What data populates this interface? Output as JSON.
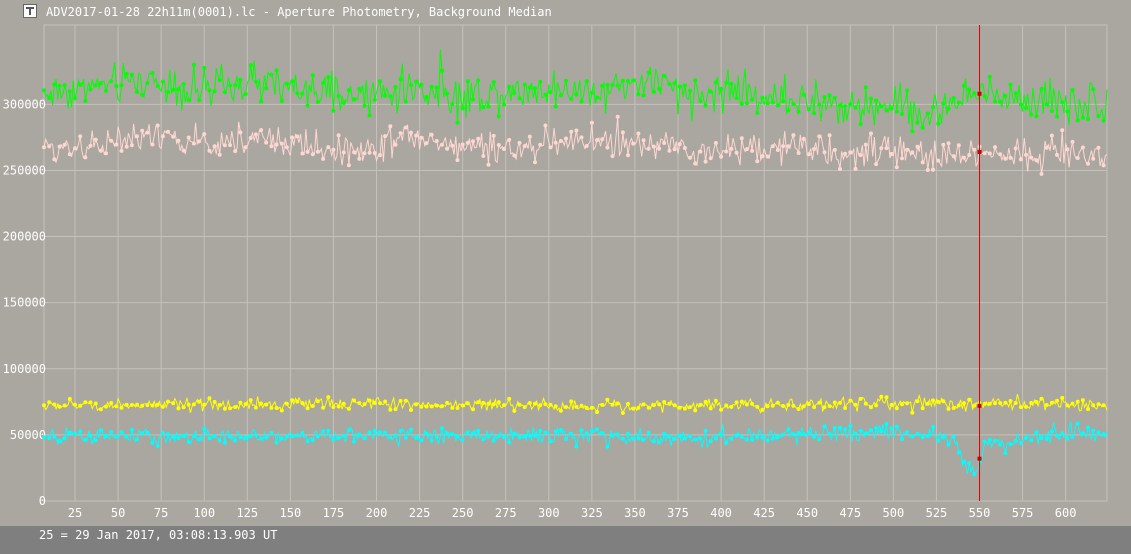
{
  "window": {
    "title": "ADV2017-01-28 22h11m(0001).lc - Aperture Photometry, Background Median"
  },
  "footer": {
    "status": "25 = 29 Jan 2017, 03:08:13.903 UT"
  },
  "chart_data": {
    "type": "line",
    "xlim": [
      7,
      624
    ],
    "ylim": [
      0,
      360000
    ],
    "x_ticks": [
      25,
      50,
      75,
      100,
      125,
      150,
      175,
      200,
      225,
      250,
      275,
      300,
      325,
      350,
      375,
      400,
      425,
      450,
      475,
      500,
      525,
      550,
      575,
      600
    ],
    "y_ticks": [
      0,
      50000,
      100000,
      150000,
      200000,
      250000,
      300000
    ],
    "grid": true,
    "cursor_x": 550,
    "colors": {
      "background": "#aaa6a0",
      "grid": "#c4c0ba",
      "axis_text": "#ffffff",
      "cursor": "#e00000",
      "marker": "#c80000"
    },
    "series": [
      {
        "color": "#00ff00",
        "points": [
          [
            7,
            308000
          ],
          [
            40,
            314000
          ],
          [
            70,
            318000
          ],
          [
            100,
            310000
          ],
          [
            130,
            316000
          ],
          [
            160,
            309000
          ],
          [
            190,
            305000
          ],
          [
            220,
            312000
          ],
          [
            250,
            306000
          ],
          [
            280,
            310000
          ],
          [
            300,
            313000
          ],
          [
            320,
            308000
          ],
          [
            340,
            314000
          ],
          [
            360,
            318000
          ],
          [
            380,
            304000
          ],
          [
            400,
            310000
          ],
          [
            430,
            306000
          ],
          [
            460,
            300000
          ],
          [
            480,
            296000
          ],
          [
            500,
            302000
          ],
          [
            520,
            290000
          ],
          [
            540,
            305000
          ],
          [
            560,
            307000
          ],
          [
            590,
            303000
          ],
          [
            624,
            300000
          ]
        ],
        "noise": 14000,
        "cursor_value": 308000
      },
      {
        "color": "#ffd7d2",
        "points": [
          [
            7,
            266000
          ],
          [
            40,
            271000
          ],
          [
            70,
            274000
          ],
          [
            100,
            270000
          ],
          [
            130,
            275000
          ],
          [
            160,
            268000
          ],
          [
            190,
            265000
          ],
          [
            220,
            276000
          ],
          [
            250,
            267000
          ],
          [
            280,
            266000
          ],
          [
            300,
            271000
          ],
          [
            330,
            272000
          ],
          [
            360,
            268000
          ],
          [
            390,
            263000
          ],
          [
            420,
            269000
          ],
          [
            450,
            266000
          ],
          [
            480,
            262000
          ],
          [
            500,
            265000
          ],
          [
            520,
            261000
          ],
          [
            540,
            262000
          ],
          [
            560,
            263000
          ],
          [
            590,
            264000
          ],
          [
            624,
            262000
          ]
        ],
        "noise": 11000,
        "cursor_value": 264000
      },
      {
        "color": "#ffff00",
        "points": [
          [
            7,
            72000
          ],
          [
            60,
            73000
          ],
          [
            120,
            72000
          ],
          [
            180,
            74000
          ],
          [
            240,
            73000
          ],
          [
            300,
            72000
          ],
          [
            360,
            72000
          ],
          [
            420,
            73000
          ],
          [
            480,
            74000
          ],
          [
            540,
            73000
          ],
          [
            580,
            74000
          ],
          [
            624,
            72000
          ]
        ],
        "noise": 4500,
        "cursor_value": 72000
      },
      {
        "color": "#00ffff",
        "points": [
          [
            7,
            48000
          ],
          [
            60,
            49000
          ],
          [
            120,
            48000
          ],
          [
            180,
            50000
          ],
          [
            240,
            49000
          ],
          [
            300,
            50000
          ],
          [
            360,
            47000
          ],
          [
            420,
            49000
          ],
          [
            480,
            51000
          ],
          [
            530,
            49000
          ],
          [
            537,
            45000
          ],
          [
            540,
            30000
          ],
          [
            544,
            24000
          ],
          [
            548,
            20000
          ],
          [
            551,
            34000
          ],
          [
            556,
            44000
          ],
          [
            575,
            48000
          ],
          [
            600,
            50000
          ],
          [
            624,
            49000
          ]
        ],
        "noise": 5500,
        "cursor_value": 32000
      }
    ]
  }
}
